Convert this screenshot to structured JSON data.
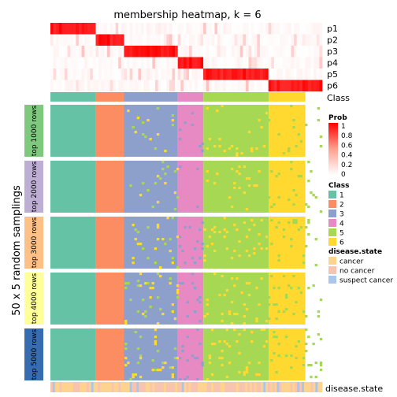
{
  "chart_data": {
    "type": "heatmap",
    "title": "membership heatmap, k = 6",
    "ylabel": "50 x 5 random samplings",
    "prob_rows": [
      "p1",
      "p2",
      "p3",
      "p4",
      "p5",
      "p6"
    ],
    "class_label": "Class",
    "class_segments": [
      {
        "class": 1,
        "fraction": 0.167
      },
      {
        "class": 2,
        "fraction": 0.104
      },
      {
        "class": 3,
        "fraction": 0.198
      },
      {
        "class": 4,
        "fraction": 0.094
      },
      {
        "class": 5,
        "fraction": 0.24
      },
      {
        "class": 6,
        "fraction": 0.135
      }
    ],
    "row_groups": [
      "top 1000 rows",
      "top 2000 rows",
      "top 3000 rows",
      "top 4000 rows",
      "top 5000 rows"
    ],
    "row_group_colors": [
      "#7fc97f",
      "#beaed4",
      "#fdc086",
      "#ffff99",
      "#386cb0"
    ],
    "annotation_label": "disease.state",
    "legend": {
      "prob": {
        "title": "Prob",
        "ticks": [
          "1",
          "0.8",
          "0.6",
          "0.4",
          "0.2",
          "0"
        ]
      },
      "class": {
        "title": "Class",
        "items": [
          {
            "label": "1",
            "color": "#66c2a5"
          },
          {
            "label": "2",
            "color": "#fc8d62"
          },
          {
            "label": "3",
            "color": "#8da0cb"
          },
          {
            "label": "4",
            "color": "#e78ac3"
          },
          {
            "label": "5",
            "color": "#a6d854"
          },
          {
            "label": "6",
            "color": "#ffd92f"
          }
        ]
      },
      "disease": {
        "title": "disease.state",
        "items": [
          {
            "label": "cancer",
            "color": "#fdd38e"
          },
          {
            "label": "no cancer",
            "color": "#f8c4b0"
          },
          {
            "label": "suspect cancer",
            "color": "#a9c6ec"
          }
        ]
      }
    }
  }
}
